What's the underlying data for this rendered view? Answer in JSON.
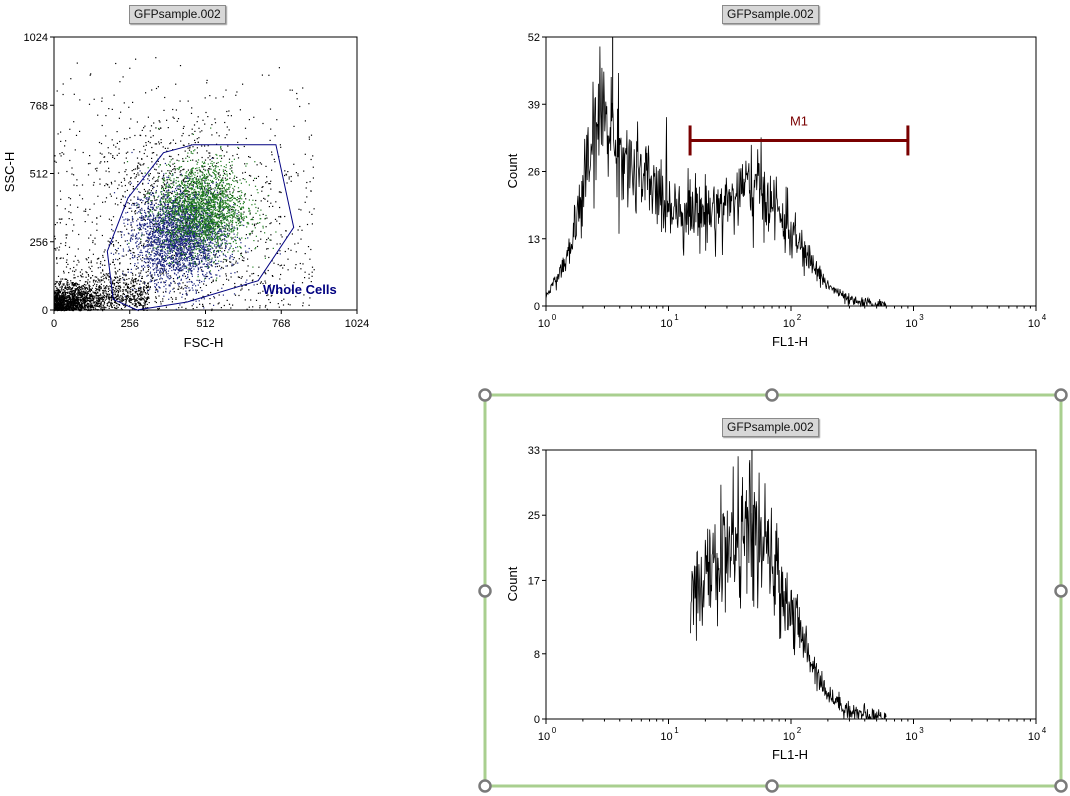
{
  "sample_label": "GFPsample.002",
  "chart_data": [
    {
      "type": "scatter",
      "title_tag": "GFPsample.002",
      "xlabel": "FSC-H",
      "ylabel": "SSC-H",
      "xlim": [
        0,
        1024
      ],
      "ylim": [
        0,
        1024
      ],
      "xticks": [
        0,
        256,
        512,
        768,
        1024
      ],
      "yticks": [
        0,
        256,
        512,
        768,
        1024
      ],
      "xtick_labels": [
        "0",
        "256",
        "512",
        "768",
        "1024"
      ],
      "ytick_labels": [
        "0",
        "256",
        "512",
        "768",
        "1024"
      ],
      "series": [
        {
          "color": "#000000",
          "approx_points": 3000
        },
        {
          "color": "#1a237e",
          "approx_points": 2500
        },
        {
          "color": "#1e7b1e",
          "approx_points": 2000
        }
      ],
      "gate": {
        "name": "Whole Cells",
        "color": "#000080",
        "polygon": [
          [
            280,
            0
          ],
          [
            200,
            40
          ],
          [
            180,
            220
          ],
          [
            250,
            420
          ],
          [
            370,
            590
          ],
          [
            470,
            620
          ],
          [
            750,
            620
          ],
          [
            810,
            310
          ],
          [
            690,
            110
          ],
          [
            450,
            30
          ]
        ]
      }
    },
    {
      "type": "histogram",
      "title_tag": "GFPsample.002",
      "xlabel": "FL1-H",
      "ylabel": "Count",
      "xscale": "log",
      "xlim": [
        1,
        10000
      ],
      "ylim": [
        0,
        52
      ],
      "yticks": [
        0,
        13,
        26,
        39,
        52
      ],
      "ytick_labels": [
        "0",
        "13",
        "26",
        "39",
        "52"
      ],
      "xtick_labels": [
        {
          "base": "10",
          "exp": "0"
        },
        {
          "base": "10",
          "exp": "1"
        },
        {
          "base": "10",
          "exp": "2"
        },
        {
          "base": "10",
          "exp": "3"
        },
        {
          "base": "10",
          "exp": "4"
        }
      ],
      "envelope": [
        [
          1,
          2
        ],
        [
          1.5,
          9
        ],
        [
          2,
          22
        ],
        [
          2.5,
          33
        ],
        [
          3,
          38
        ],
        [
          3.5,
          33
        ],
        [
          5,
          26
        ],
        [
          8,
          22
        ],
        [
          12,
          19
        ],
        [
          20,
          18
        ],
        [
          30,
          20
        ],
        [
          45,
          23
        ],
        [
          60,
          22
        ],
        [
          90,
          16
        ],
        [
          130,
          10
        ],
        [
          200,
          4
        ],
        [
          300,
          1
        ],
        [
          450,
          0.3
        ],
        [
          600,
          0
        ]
      ],
      "peak_spike": [
        3.5,
        52
      ],
      "marker": {
        "label": "M1",
        "x_start": 15,
        "x_end": 900,
        "y": 32,
        "color": "#7a0000"
      }
    },
    {
      "type": "histogram",
      "title_tag": "GFPsample.002",
      "xlabel": "FL1-H",
      "ylabel": "Count",
      "xscale": "log",
      "xlim": [
        1,
        10000
      ],
      "ylim": [
        0,
        33
      ],
      "yticks": [
        0,
        8,
        17,
        25,
        33
      ],
      "ytick_labels": [
        "0",
        "8",
        "17",
        "25",
        "33"
      ],
      "xtick_labels": [
        {
          "base": "10",
          "exp": "0"
        },
        {
          "base": "10",
          "exp": "1"
        },
        {
          "base": "10",
          "exp": "2"
        },
        {
          "base": "10",
          "exp": "3"
        },
        {
          "base": "10",
          "exp": "4"
        }
      ],
      "envelope": [
        [
          15,
          0
        ],
        [
          15.2,
          17
        ],
        [
          20,
          17
        ],
        [
          30,
          21
        ],
        [
          45,
          23
        ],
        [
          60,
          21
        ],
        [
          90,
          15
        ],
        [
          130,
          9
        ],
        [
          200,
          3
        ],
        [
          300,
          1
        ],
        [
          450,
          0.3
        ],
        [
          600,
          0
        ]
      ],
      "peak_spike": [
        48,
        33
      ],
      "selected": true,
      "frame_color": "#a9cf8f"
    }
  ]
}
